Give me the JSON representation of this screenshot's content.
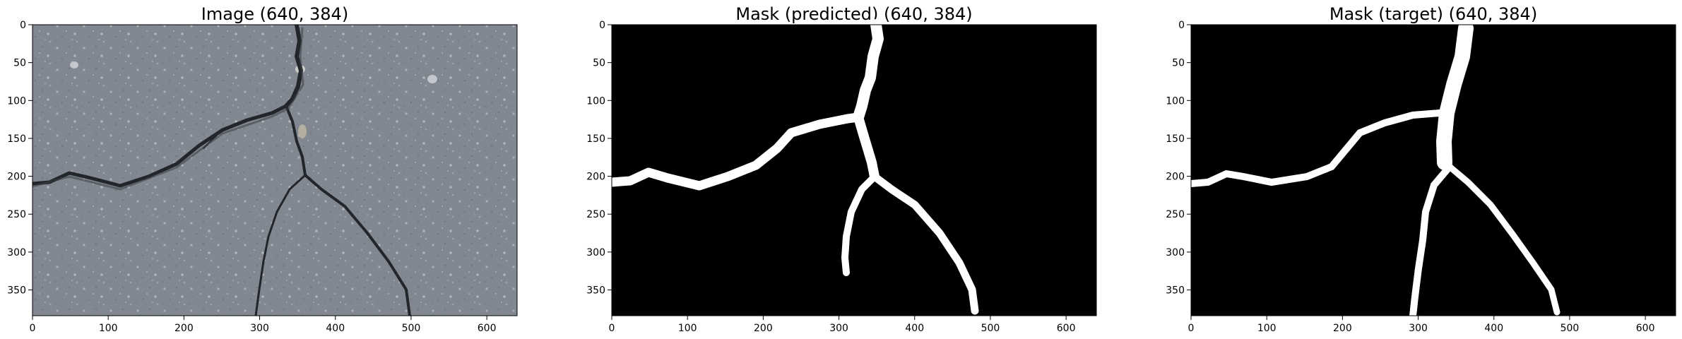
{
  "figure": {
    "panels": [
      {
        "id": "image",
        "title": "Image (640, 384)",
        "kind": "photo",
        "content": "asphalt-crack-photo"
      },
      {
        "id": "pred",
        "title": "Mask (predicted) (640, 384)",
        "kind": "mask",
        "content": "predicted-crack-mask"
      },
      {
        "id": "target",
        "title": "Mask (target) (640, 384)",
        "kind": "mask",
        "content": "target-crack-mask"
      }
    ],
    "axes": {
      "x_ticks": [
        0,
        100,
        200,
        300,
        400,
        500,
        600
      ],
      "y_ticks": [
        0,
        50,
        100,
        150,
        200,
        250,
        300,
        350
      ],
      "x_range": [
        0,
        640
      ],
      "y_range": [
        0,
        384
      ]
    },
    "colors": {
      "asphalt": "#7a8088",
      "crack": "#1e2125",
      "mask_background": "#000000",
      "mask_foreground": "#ffffff"
    }
  }
}
